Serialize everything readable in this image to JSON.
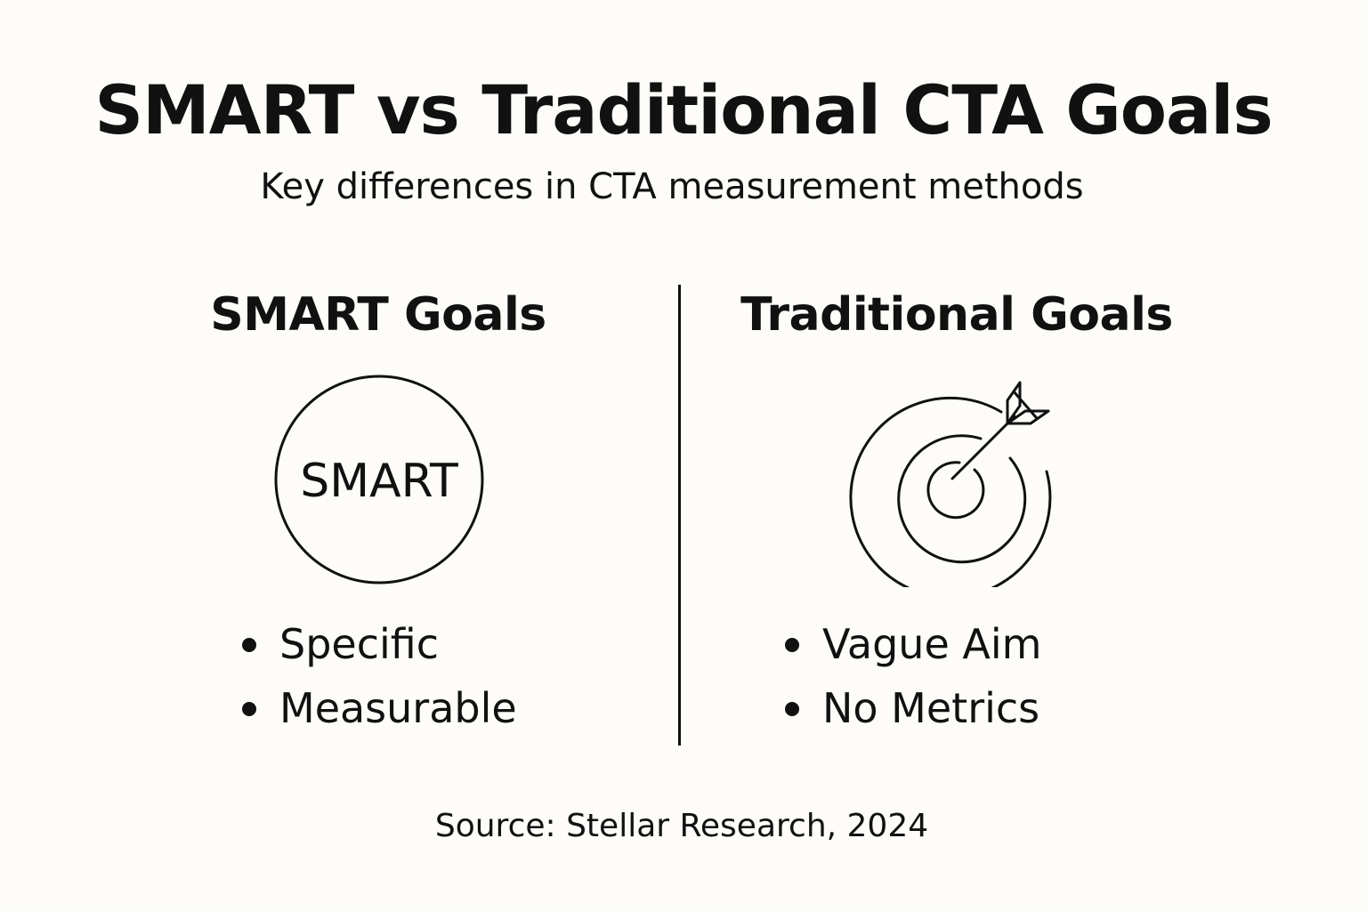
{
  "header": {
    "title": "SMART vs Traditional CTA Goals",
    "subtitle": "Key differences in CTA measurement methods"
  },
  "columns": {
    "left": {
      "heading": "SMART Goals",
      "icon_label": "SMART",
      "icon": "smart-circle-icon",
      "bullets": [
        "Specific",
        "Measurable"
      ]
    },
    "right": {
      "heading": "Traditional Goals",
      "icon": "target-arrow-icon",
      "bullets": [
        "Vague Aim",
        "No Metrics"
      ]
    }
  },
  "footer": {
    "source": "Source: Stellar Research, 2024"
  },
  "colors": {
    "background": "#fdfcf8",
    "ink": "#111111"
  }
}
